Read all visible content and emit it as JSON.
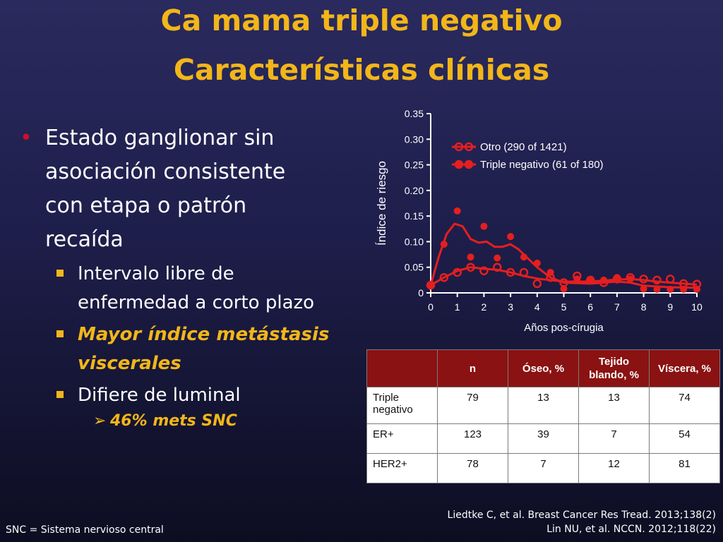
{
  "title_line1": "Ca mama triple negativo",
  "title_line2": "Características clínicas",
  "bullet_symbol": "•",
  "bullet1_lines": [
    "Estado ganglionar sin",
    "asociación consistente",
    "con etapa o patrón",
    "recaída"
  ],
  "sub1_lines": [
    "Intervalo libre de",
    "enfermedad a corto plazo"
  ],
  "sub2_lines": [
    "Mayor índice metástasis",
    "viscerales"
  ],
  "sub3": "Difiere de luminal",
  "sub_sub1": "46%  mets SNC",
  "arrow_symbol": "➢",
  "chart_data": {
    "type": "line",
    "xlabel": "Años pos-círugia",
    "ylabel": "Índice de riesgo",
    "xlim": [
      0,
      10
    ],
    "ylim": [
      0,
      0.35
    ],
    "x_ticks": [
      "0",
      "1",
      "2",
      "3",
      "4",
      "5",
      "6",
      "7",
      "8",
      "9",
      "10"
    ],
    "y_ticks": [
      "0",
      "0.05",
      "0.10",
      "0.15",
      "0.20",
      "0.25",
      "0.30",
      "0.35"
    ],
    "legend_position": "top-right",
    "series": [
      {
        "name": "Otro (290 of 1421)",
        "color": "#e51f1f",
        "marker": "open-circle",
        "points": [
          [
            0,
            0.015
          ],
          [
            0.5,
            0.03
          ],
          [
            1,
            0.04
          ],
          [
            1.5,
            0.05
          ],
          [
            2,
            0.043
          ],
          [
            2.5,
            0.05
          ],
          [
            3,
            0.04
          ],
          [
            3.5,
            0.04
          ],
          [
            4,
            0.018
          ],
          [
            4.5,
            0.03
          ],
          [
            5,
            0.02
          ],
          [
            5.5,
            0.033
          ],
          [
            6,
            0.025
          ],
          [
            6.5,
            0.02
          ],
          [
            7,
            0.027
          ],
          [
            7.5,
            0.03
          ],
          [
            8,
            0.027
          ],
          [
            8.5,
            0.025
          ],
          [
            9,
            0.027
          ],
          [
            9.5,
            0.018
          ],
          [
            10,
            0.017
          ]
        ],
        "curve": [
          [
            0,
            0.015
          ],
          [
            0.5,
            0.03
          ],
          [
            1,
            0.043
          ],
          [
            1.5,
            0.05
          ],
          [
            2,
            0.047
          ],
          [
            2.5,
            0.045
          ],
          [
            3,
            0.04
          ],
          [
            3.5,
            0.033
          ],
          [
            4,
            0.028
          ],
          [
            4.5,
            0.025
          ],
          [
            5,
            0.022
          ],
          [
            5.5,
            0.022
          ],
          [
            6,
            0.022
          ],
          [
            6.5,
            0.024
          ],
          [
            7,
            0.026
          ],
          [
            7.5,
            0.027
          ],
          [
            8,
            0.025
          ],
          [
            8.5,
            0.022
          ],
          [
            9,
            0.02
          ],
          [
            9.5,
            0.018
          ],
          [
            10,
            0.016
          ]
        ]
      },
      {
        "name": "Triple negativo (61 of 180)",
        "color": "#e51f1f",
        "marker": "filled-circle",
        "points": [
          [
            0,
            0.015
          ],
          [
            0.5,
            0.095
          ],
          [
            1,
            0.16
          ],
          [
            1.5,
            0.07
          ],
          [
            2,
            0.13
          ],
          [
            2.5,
            0.068
          ],
          [
            3,
            0.11
          ],
          [
            3.5,
            0.07
          ],
          [
            4,
            0.058
          ],
          [
            4.5,
            0.04
          ],
          [
            5,
            0.008
          ],
          [
            5.5,
            0.027
          ],
          [
            6,
            0.025
          ],
          [
            6.5,
            0.025
          ],
          [
            7,
            0.03
          ],
          [
            7.5,
            0.027
          ],
          [
            8,
            0.008
          ],
          [
            8.5,
            0.007
          ],
          [
            9,
            0.007
          ],
          [
            9.5,
            0.007
          ],
          [
            10,
            0.007
          ]
        ],
        "curve": [
          [
            0,
            0.015
          ],
          [
            0.3,
            0.07
          ],
          [
            0.6,
            0.115
          ],
          [
            0.9,
            0.135
          ],
          [
            1.2,
            0.13
          ],
          [
            1.5,
            0.105
          ],
          [
            1.8,
            0.098
          ],
          [
            2.1,
            0.1
          ],
          [
            2.4,
            0.09
          ],
          [
            2.7,
            0.09
          ],
          [
            3,
            0.095
          ],
          [
            3.3,
            0.085
          ],
          [
            3.6,
            0.07
          ],
          [
            4,
            0.05
          ],
          [
            4.5,
            0.03
          ],
          [
            5,
            0.02
          ],
          [
            6,
            0.018
          ],
          [
            7,
            0.022
          ],
          [
            7.5,
            0.02
          ],
          [
            8,
            0.014
          ],
          [
            9,
            0.011
          ],
          [
            10,
            0.01
          ]
        ]
      }
    ]
  },
  "table": {
    "headers": [
      "",
      "n",
      "Óseo, %",
      "Tejido blando, %",
      "Víscera, %"
    ],
    "rows": [
      [
        "Triple negativo",
        "79",
        "13",
        "13",
        "74"
      ],
      [
        "ER+",
        "123",
        "39",
        "7",
        "54"
      ],
      [
        "HER2+",
        "78",
        "7",
        "12",
        "81"
      ]
    ]
  },
  "references": [
    "Liedtke C, et al. Breast Cancer Res Tread. 2013;138(2)",
    "Lin NU, et al. NCCN. 2012;118(22)"
  ],
  "footnote": "SNC  = Sistema nervioso central",
  "colors": {
    "title": "#f2b619",
    "bullet": "#c8102e",
    "table_header": "#8a1212",
    "series": "#e51f1f"
  }
}
